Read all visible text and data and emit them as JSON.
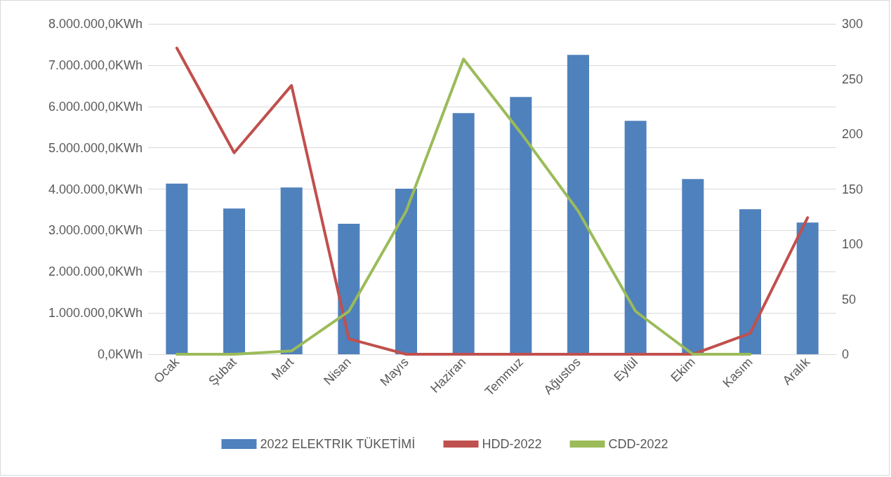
{
  "chart_data": {
    "type": "bar",
    "categories": [
      "Ocak",
      "Şubat",
      "Mart",
      "Nisan",
      "Mayıs",
      "Haziran",
      "Temmuz",
      "Ağustos",
      "Eylül",
      "Ekim",
      "Kasım",
      "Aralık"
    ],
    "series": [
      {
        "name": "2022 ELEKTRIK TÜKETİMİ",
        "color": "#4f81bd",
        "values": [
          4130000,
          3530000,
          4040000,
          3160000,
          4010000,
          5840000,
          6230000,
          7250000,
          5650000,
          4240000,
          3510000,
          3190000
        ]
      },
      {
        "name": "HDD-2022",
        "type": "line",
        "axis": "y2",
        "color": "#c0504d",
        "values": [
          278,
          183,
          244,
          14,
          0,
          0,
          0,
          0,
          0,
          0,
          19,
          124
        ]
      },
      {
        "name": "CDD-2022",
        "type": "line",
        "axis": "y2",
        "color": "#9bbb59",
        "values": [
          0,
          0,
          3,
          39,
          130,
          268,
          201,
          130,
          39,
          0,
          0,
          null
        ]
      }
    ],
    "ylim": [
      0,
      8000000
    ],
    "yticks": [
      {
        "value": 0,
        "label": "0,0KWh"
      },
      {
        "value": 1000000,
        "label": "1.000.000,0KWh"
      },
      {
        "value": 2000000,
        "label": "2.000.000,0KWh"
      },
      {
        "value": 3000000,
        "label": "3.000.000,0KWh"
      },
      {
        "value": 4000000,
        "label": "4.000.000,0KWh"
      },
      {
        "value": 5000000,
        "label": "5.000.000,0KWh"
      },
      {
        "value": 6000000,
        "label": "6.000.000,0KWh"
      },
      {
        "value": 7000000,
        "label": "7.000.000,0KWh"
      },
      {
        "value": 8000000,
        "label": "8.000.000,0KWh"
      }
    ],
    "y2lim": [
      0,
      300
    ],
    "y2ticks": [
      0,
      50,
      100,
      150,
      200,
      250,
      300
    ],
    "grid": "y",
    "legend": "bottom",
    "marker": "none",
    "line_style": "solid"
  }
}
